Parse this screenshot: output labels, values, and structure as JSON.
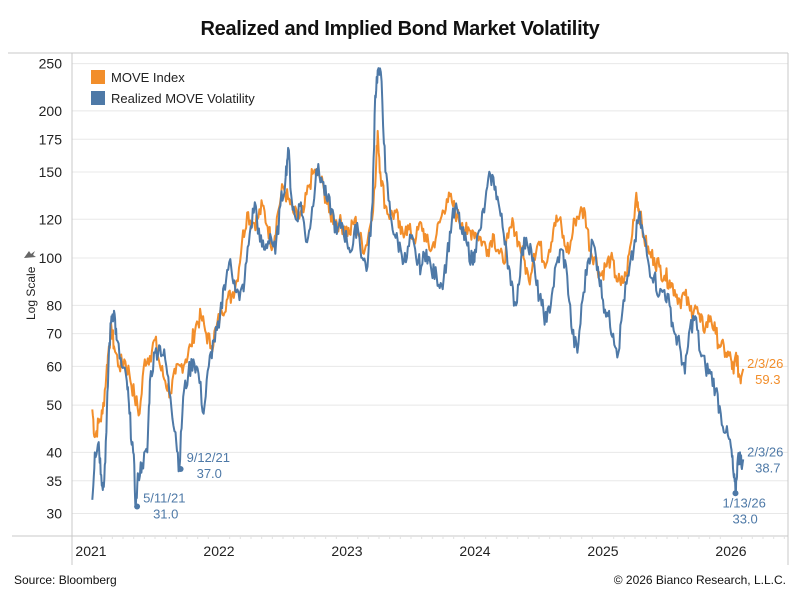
{
  "title": "Realized and Implied Bond Market Volatility",
  "footer": {
    "source": "Source: Bloomberg",
    "copyright": "© 2026 Bianco Research, L.L.C."
  },
  "colors": {
    "move": "#f28e2b",
    "realized": "#4e79a7",
    "grid": "#e8e8e8",
    "frame": "#c8c8c8"
  },
  "chart_data": {
    "type": "line",
    "title": "Realized and Implied Bond Market Volatility",
    "xlabel": "",
    "ylabel": "Log Scale",
    "yscale": "log",
    "ylim": [
      27,
      250
    ],
    "xlim": [
      2020.85,
      2026.45
    ],
    "yticks": [
      30,
      35,
      40,
      50,
      60,
      70,
      80,
      100,
      120,
      150,
      175,
      200,
      250
    ],
    "xticks": [
      "2021",
      "2022",
      "2023",
      "2024",
      "2025",
      "2026"
    ],
    "grid": true,
    "legend_position": "top-left",
    "series": [
      {
        "name": "MOVE Index",
        "points": [
          [
            2021.01,
            49
          ],
          [
            2021.03,
            43
          ],
          [
            2021.06,
            46
          ],
          [
            2021.09,
            48
          ],
          [
            2021.12,
            58
          ],
          [
            2021.14,
            66
          ],
          [
            2021.16,
            72
          ],
          [
            2021.18,
            66
          ],
          [
            2021.22,
            60
          ],
          [
            2021.26,
            62
          ],
          [
            2021.3,
            58
          ],
          [
            2021.34,
            52
          ],
          [
            2021.38,
            48
          ],
          [
            2021.42,
            62
          ],
          [
            2021.46,
            63
          ],
          [
            2021.5,
            68
          ],
          [
            2021.54,
            60
          ],
          [
            2021.58,
            56
          ],
          [
            2021.62,
            53
          ],
          [
            2021.66,
            58
          ],
          [
            2021.7,
            60
          ],
          [
            2021.74,
            62
          ],
          [
            2021.78,
            66
          ],
          [
            2021.82,
            73
          ],
          [
            2021.86,
            76
          ],
          [
            2021.9,
            70
          ],
          [
            2021.94,
            66
          ],
          [
            2021.98,
            72
          ],
          [
            2022.02,
            78
          ],
          [
            2022.06,
            82
          ],
          [
            2022.1,
            84
          ],
          [
            2022.14,
            90
          ],
          [
            2022.18,
            108
          ],
          [
            2022.22,
            124
          ],
          [
            2022.26,
            118
          ],
          [
            2022.3,
            120
          ],
          [
            2022.34,
            128
          ],
          [
            2022.38,
            116
          ],
          [
            2022.42,
            106
          ],
          [
            2022.46,
            124
          ],
          [
            2022.5,
            140
          ],
          [
            2022.54,
            132
          ],
          [
            2022.58,
            124
          ],
          [
            2022.62,
            120
          ],
          [
            2022.66,
            124
          ],
          [
            2022.7,
            140
          ],
          [
            2022.74,
            150
          ],
          [
            2022.78,
            148
          ],
          [
            2022.82,
            138
          ],
          [
            2022.86,
            124
          ],
          [
            2022.9,
            120
          ],
          [
            2022.94,
            118
          ],
          [
            2022.98,
            116
          ],
          [
            2023.02,
            112
          ],
          [
            2023.06,
            120
          ],
          [
            2023.1,
            110
          ],
          [
            2023.14,
            104
          ],
          [
            2023.18,
            116
          ],
          [
            2023.22,
            140
          ],
          [
            2023.24,
            182
          ],
          [
            2023.26,
            150
          ],
          [
            2023.3,
            128
          ],
          [
            2023.34,
            122
          ],
          [
            2023.38,
            124
          ],
          [
            2023.42,
            112
          ],
          [
            2023.46,
            116
          ],
          [
            2023.5,
            112
          ],
          [
            2023.54,
            110
          ],
          [
            2023.58,
            118
          ],
          [
            2023.62,
            108
          ],
          [
            2023.66,
            104
          ],
          [
            2023.7,
            112
          ],
          [
            2023.74,
            122
          ],
          [
            2023.78,
            132
          ],
          [
            2023.82,
            130
          ],
          [
            2023.86,
            122
          ],
          [
            2023.9,
            118
          ],
          [
            2023.94,
            112
          ],
          [
            2023.98,
            114
          ],
          [
            2024.02,
            112
          ],
          [
            2024.06,
            108
          ],
          [
            2024.1,
            104
          ],
          [
            2024.14,
            112
          ],
          [
            2024.18,
            104
          ],
          [
            2024.22,
            98
          ],
          [
            2024.26,
            110
          ],
          [
            2024.3,
            118
          ],
          [
            2024.34,
            108
          ],
          [
            2024.38,
            100
          ],
          [
            2024.42,
            90
          ],
          [
            2024.46,
            102
          ],
          [
            2024.5,
            108
          ],
          [
            2024.54,
            98
          ],
          [
            2024.58,
            104
          ],
          [
            2024.62,
            118
          ],
          [
            2024.66,
            120
          ],
          [
            2024.7,
            106
          ],
          [
            2024.74,
            104
          ],
          [
            2024.78,
            120
          ],
          [
            2024.82,
            124
          ],
          [
            2024.86,
            124
          ],
          [
            2024.9,
            104
          ],
          [
            2024.94,
            100
          ],
          [
            2024.98,
            92
          ],
          [
            2025.02,
            96
          ],
          [
            2025.06,
            100
          ],
          [
            2025.1,
            92
          ],
          [
            2025.14,
            88
          ],
          [
            2025.18,
            92
          ],
          [
            2025.22,
            108
          ],
          [
            2025.26,
            136
          ],
          [
            2025.28,
            126
          ],
          [
            2025.32,
            110
          ],
          [
            2025.36,
            102
          ],
          [
            2025.4,
            100
          ],
          [
            2025.44,
            96
          ],
          [
            2025.48,
            92
          ],
          [
            2025.52,
            90
          ],
          [
            2025.56,
            86
          ],
          [
            2025.6,
            82
          ],
          [
            2025.64,
            84
          ],
          [
            2025.68,
            78
          ],
          [
            2025.72,
            80
          ],
          [
            2025.76,
            74
          ],
          [
            2025.8,
            72
          ],
          [
            2025.84,
            76
          ],
          [
            2025.88,
            70
          ],
          [
            2025.92,
            66
          ],
          [
            2025.96,
            64
          ],
          [
            2026.0,
            62
          ],
          [
            2026.02,
            58
          ],
          [
            2026.04,
            64
          ],
          [
            2026.06,
            58
          ],
          [
            2026.08,
            57
          ],
          [
            2026.095,
            59.3
          ]
        ]
      },
      {
        "name": "Realized MOVE Volatility",
        "points": [
          [
            2021.01,
            32
          ],
          [
            2021.03,
            40
          ],
          [
            2021.06,
            42
          ],
          [
            2021.08,
            36
          ],
          [
            2021.1,
            34
          ],
          [
            2021.12,
            44
          ],
          [
            2021.14,
            64
          ],
          [
            2021.16,
            76
          ],
          [
            2021.18,
            78
          ],
          [
            2021.2,
            68
          ],
          [
            2021.24,
            60
          ],
          [
            2021.28,
            56
          ],
          [
            2021.3,
            48
          ],
          [
            2021.33,
            40
          ],
          [
            2021.35,
            31
          ],
          [
            2021.37,
            36
          ],
          [
            2021.4,
            38
          ],
          [
            2021.44,
            40
          ],
          [
            2021.46,
            56
          ],
          [
            2021.5,
            64
          ],
          [
            2021.54,
            66
          ],
          [
            2021.58,
            62
          ],
          [
            2021.62,
            52
          ],
          [
            2021.66,
            44
          ],
          [
            2021.69,
            37
          ],
          [
            2021.72,
            52
          ],
          [
            2021.76,
            58
          ],
          [
            2021.8,
            62
          ],
          [
            2021.84,
            58
          ],
          [
            2021.88,
            48
          ],
          [
            2021.92,
            60
          ],
          [
            2021.96,
            68
          ],
          [
            2022.0,
            72
          ],
          [
            2022.04,
            88
          ],
          [
            2022.08,
            98
          ],
          [
            2022.12,
            90
          ],
          [
            2022.16,
            82
          ],
          [
            2022.2,
            90
          ],
          [
            2022.24,
            112
          ],
          [
            2022.28,
            130
          ],
          [
            2022.32,
            108
          ],
          [
            2022.36,
            104
          ],
          [
            2022.4,
            112
          ],
          [
            2022.44,
            102
          ],
          [
            2022.48,
            128
          ],
          [
            2022.52,
            146
          ],
          [
            2022.54,
            168
          ],
          [
            2022.57,
            130
          ],
          [
            2022.6,
            120
          ],
          [
            2022.64,
            130
          ],
          [
            2022.68,
            108
          ],
          [
            2022.72,
            120
          ],
          [
            2022.76,
            152
          ],
          [
            2022.8,
            146
          ],
          [
            2022.84,
            132
          ],
          [
            2022.88,
            126
          ],
          [
            2022.92,
            112
          ],
          [
            2022.96,
            118
          ],
          [
            2023.0,
            108
          ],
          [
            2023.04,
            104
          ],
          [
            2023.08,
            118
          ],
          [
            2023.12,
            100
          ],
          [
            2023.16,
            96
          ],
          [
            2023.2,
            130
          ],
          [
            2023.22,
            215
          ],
          [
            2023.24,
            242
          ],
          [
            2023.27,
            230
          ],
          [
            2023.3,
            150
          ],
          [
            2023.34,
            122
          ],
          [
            2023.38,
            110
          ],
          [
            2023.42,
            104
          ],
          [
            2023.46,
            98
          ],
          [
            2023.5,
            110
          ],
          [
            2023.54,
            100
          ],
          [
            2023.58,
            96
          ],
          [
            2023.62,
            104
          ],
          [
            2023.66,
            94
          ],
          [
            2023.7,
            92
          ],
          [
            2023.74,
            88
          ],
          [
            2023.78,
            100
          ],
          [
            2023.82,
            120
          ],
          [
            2023.86,
            126
          ],
          [
            2023.9,
            112
          ],
          [
            2023.94,
            106
          ],
          [
            2023.98,
            98
          ],
          [
            2024.0,
            104
          ],
          [
            2024.04,
            114
          ],
          [
            2024.08,
            130
          ],
          [
            2024.12,
            148
          ],
          [
            2024.16,
            140
          ],
          [
            2024.2,
            122
          ],
          [
            2024.24,
            108
          ],
          [
            2024.28,
            88
          ],
          [
            2024.32,
            80
          ],
          [
            2024.36,
            100
          ],
          [
            2024.4,
            110
          ],
          [
            2024.44,
            104
          ],
          [
            2024.48,
            88
          ],
          [
            2024.52,
            80
          ],
          [
            2024.56,
            74
          ],
          [
            2024.6,
            84
          ],
          [
            2024.64,
            98
          ],
          [
            2024.68,
            104
          ],
          [
            2024.72,
            92
          ],
          [
            2024.76,
            70
          ],
          [
            2024.8,
            64
          ],
          [
            2024.84,
            82
          ],
          [
            2024.88,
            98
          ],
          [
            2024.92,
            108
          ],
          [
            2024.96,
            96
          ],
          [
            2025.0,
            82
          ],
          [
            2025.04,
            76
          ],
          [
            2025.08,
            70
          ],
          [
            2025.12,
            64
          ],
          [
            2025.16,
            82
          ],
          [
            2025.2,
            92
          ],
          [
            2025.24,
            104
          ],
          [
            2025.28,
            122
          ],
          [
            2025.32,
            110
          ],
          [
            2025.36,
            96
          ],
          [
            2025.4,
            92
          ],
          [
            2025.44,
            84
          ],
          [
            2025.48,
            86
          ],
          [
            2025.52,
            80
          ],
          [
            2025.56,
            70
          ],
          [
            2025.6,
            66
          ],
          [
            2025.64,
            58
          ],
          [
            2025.68,
            72
          ],
          [
            2025.72,
            76
          ],
          [
            2025.76,
            64
          ],
          [
            2025.8,
            60
          ],
          [
            2025.84,
            58
          ],
          [
            2025.88,
            54
          ],
          [
            2025.92,
            48
          ],
          [
            2025.96,
            44
          ],
          [
            2026.0,
            41
          ],
          [
            2026.02,
            36
          ],
          [
            2026.035,
            33
          ],
          [
            2026.05,
            38
          ],
          [
            2026.07,
            40
          ],
          [
            2026.085,
            37
          ],
          [
            2026.095,
            38.7
          ]
        ]
      }
    ],
    "annotations": [
      {
        "series": "Realized MOVE Volatility",
        "date": "5/11/21",
        "value": "31.0",
        "x": 2021.36,
        "y": 31.0
      },
      {
        "series": "Realized MOVE Volatility",
        "date": "9/12/21",
        "value": "37.0",
        "x": 2021.7,
        "y": 37.0
      },
      {
        "series": "Realized MOVE Volatility",
        "date": "1/13/26",
        "value": "33.0",
        "x": 2026.035,
        "y": 33.0
      },
      {
        "series": "Realized MOVE Volatility",
        "date": "2/3/26",
        "value": "38.7",
        "x": 2026.095,
        "y": 38.7
      },
      {
        "series": "MOVE Index",
        "date": "2/3/26",
        "value": "59.3",
        "x": 2026.095,
        "y": 59.3
      }
    ]
  }
}
